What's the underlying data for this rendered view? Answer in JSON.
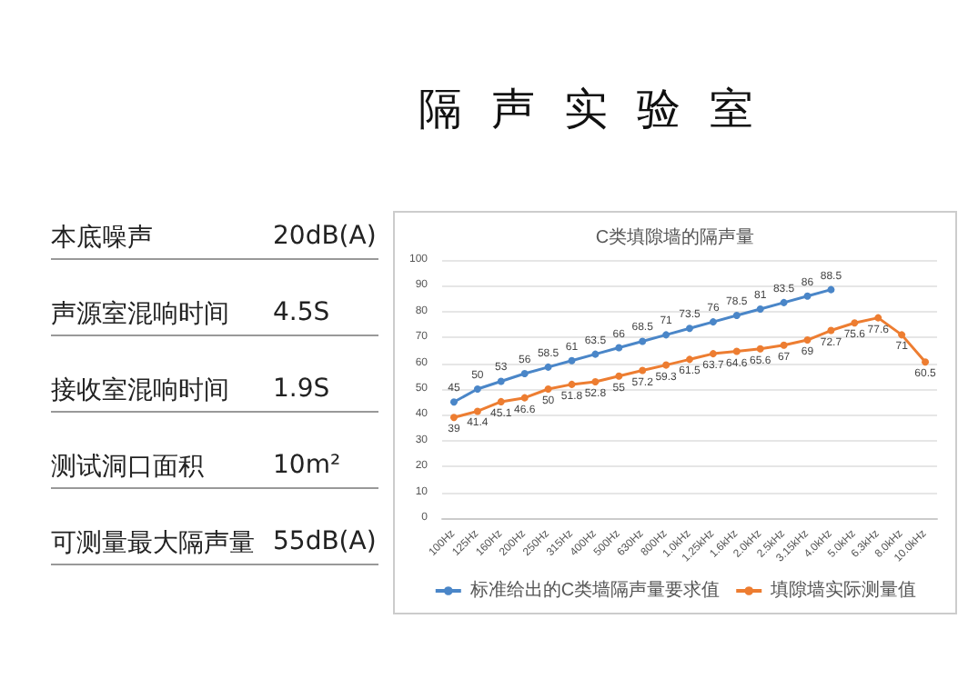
{
  "chart_data": [
    {
      "type": "other",
      "title": "隔声实验室",
      "annotations": [
        "本底噪声",
        "20dB(A)",
        "声源室混响时间",
        "4.5S",
        "接收室混响时间",
        "1.9S",
        "测试洞口面积",
        "10m²",
        "可测量最大隔声量",
        "55dB(A)"
      ]
    },
    {
      "type": "line",
      "title": "C类填隙墙的隔声量",
      "categories": [
        "100Hz",
        "125Hz",
        "160Hz",
        "200Hz",
        "250Hz",
        "315Hz",
        "400Hz",
        "500Hz",
        "630Hz",
        "800Hz",
        "1.0kHz",
        "1.25kHz",
        "1.6kHz",
        "2.0kHz",
        "2.5kHz",
        "3.15kHz",
        "4.0kHz",
        "5.0kHz",
        "6.3kHz",
        "8.0kHz",
        "10.0kHz"
      ],
      "series": [
        {
          "name": "标准给出的C类墙隔声量要求值",
          "color": "#4a86c8",
          "values": [
            45,
            50,
            53,
            56,
            58.5,
            61,
            63.5,
            66,
            68.5,
            71,
            73.5,
            76,
            78.5,
            81,
            83.5,
            86,
            88.5,
            null,
            null,
            null,
            null
          ]
        },
        {
          "name": "填隙墙实际测量值",
          "color": "#ed7d31",
          "values": [
            39,
            41.4,
            45.1,
            46.6,
            50,
            51.8,
            52.8,
            55,
            57.2,
            59.3,
            61.5,
            63.7,
            64.6,
            65.6,
            67,
            69,
            72.7,
            75.6,
            77.6,
            71,
            60.5
          ]
        }
      ],
      "ylim": [
        0,
        100
      ],
      "yticks": [
        0,
        10,
        20,
        30,
        40,
        50,
        60,
        70,
        80,
        90,
        100
      ],
      "grid": "y",
      "legend": "bottom",
      "marker": "circle",
      "line_style": "solid",
      "data_labels": true
    }
  ]
}
